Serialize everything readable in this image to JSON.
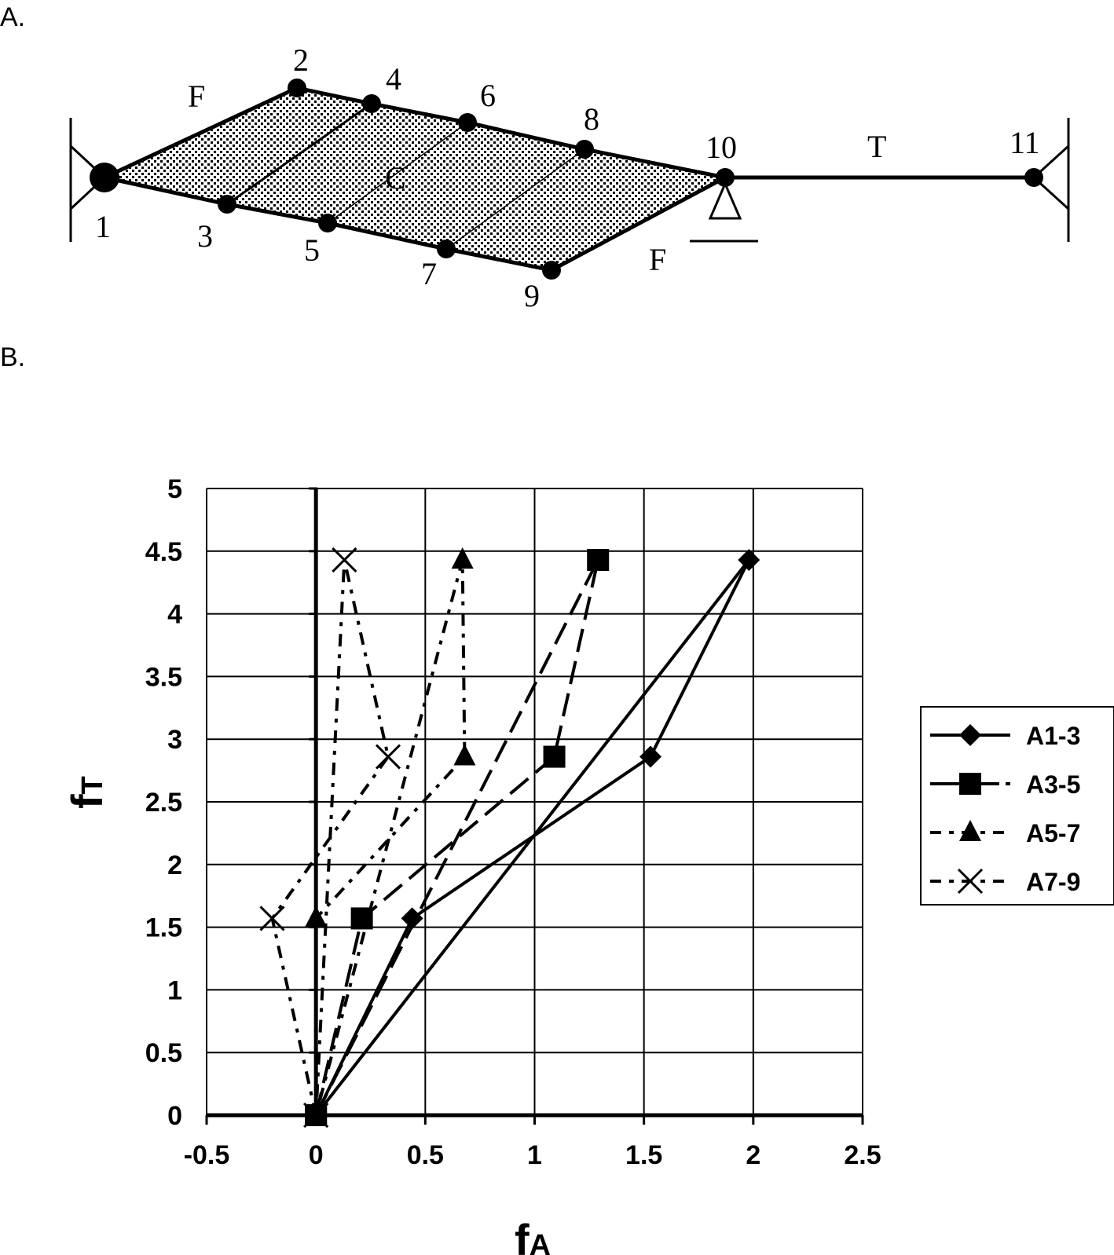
{
  "diagram": {
    "panel_label": "A.",
    "nodes": [
      "1",
      "2",
      "3",
      "4",
      "5",
      "6",
      "7",
      "8",
      "9",
      "10",
      "11"
    ],
    "member_labels": {
      "F_top": "F",
      "F_bottom": "F",
      "C": "C",
      "T": "T"
    }
  },
  "chart_panel_label": "B.",
  "chart_data": {
    "type": "line",
    "title": "",
    "xlabel": "fA",
    "xlabel_main": "f",
    "xlabel_sub": "A",
    "ylabel": "fT",
    "ylabel_main": "f",
    "ylabel_sub": "T",
    "xlim": [
      -0.5,
      2.5
    ],
    "ylim": [
      0,
      5
    ],
    "xticks": [
      "-0.5",
      "0",
      "0.5",
      "1",
      "1.5",
      "2",
      "2.5"
    ],
    "yticks": [
      "0",
      "0.5",
      "1",
      "1.5",
      "2",
      "2.5",
      "3",
      "3.5",
      "4",
      "4.5",
      "5"
    ],
    "grid": true,
    "legend_position": "right",
    "series": [
      {
        "name": "A1-3",
        "marker": "diamond",
        "dash": "solid",
        "points": [
          [
            0,
            0
          ],
          [
            0.44,
            1.57
          ],
          [
            1.53,
            2.86
          ],
          [
            1.98,
            4.43
          ],
          [
            0,
            0
          ]
        ]
      },
      {
        "name": "A3-5",
        "marker": "square",
        "dash": "long-dash",
        "points": [
          [
            0,
            0
          ],
          [
            0.21,
            1.57
          ],
          [
            1.09,
            2.86
          ],
          [
            1.29,
            4.43
          ],
          [
            0,
            0
          ]
        ]
      },
      {
        "name": "A5-7",
        "marker": "triangle",
        "dash": "dash-dot",
        "points": [
          [
            0,
            0
          ],
          [
            0,
            1.57
          ],
          [
            0.68,
            2.86
          ],
          [
            0.67,
            4.43
          ],
          [
            0,
            0
          ]
        ]
      },
      {
        "name": "A7-9",
        "marker": "x",
        "dash": "dash-dot",
        "points": [
          [
            0,
            0
          ],
          [
            -0.2,
            1.57
          ],
          [
            0.33,
            2.86
          ],
          [
            0.13,
            4.43
          ],
          [
            0,
            0
          ]
        ]
      }
    ]
  }
}
